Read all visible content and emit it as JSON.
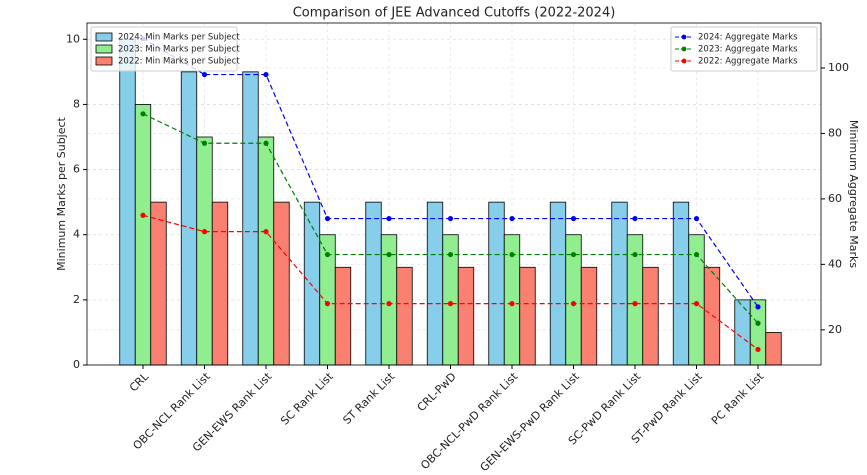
{
  "chart_data": {
    "type": "bar",
    "title": "Comparison of JEE Advanced Cutoffs (2022-2024)",
    "y_label": "Minimum Marks per Subject",
    "y2_label": "Minimum Aggregate Marks",
    "categories": [
      "CRL",
      "OBC-NCL Rank List",
      "GEN-EWS Rank List",
      "SC Rank List",
      "ST Rank List",
      "CRL-PwD",
      "OBC-NCL-PwD Rank List",
      "GEN-EWS-PwD Rank List",
      "SC-PwD Rank List",
      "ST-PwD Rank List",
      "PC Rank List"
    ],
    "series": [
      {
        "name": "2024: Min Marks per Subject",
        "type": "bar",
        "color": "#87ceeb",
        "values": [
          10,
          9,
          9,
          5,
          5,
          5,
          5,
          5,
          5,
          5,
          2
        ]
      },
      {
        "name": "2023: Min Marks per Subject",
        "type": "bar",
        "color": "#90ee90",
        "values": [
          8,
          7,
          7,
          4,
          4,
          4,
          4,
          4,
          4,
          4,
          2
        ]
      },
      {
        "name": "2022: Min Marks per Subject",
        "type": "bar",
        "color": "#fa8072",
        "values": [
          5,
          5,
          5,
          3,
          3,
          3,
          3,
          3,
          3,
          3,
          1
        ]
      },
      {
        "name": "2024: Aggregate Marks",
        "type": "line",
        "axis": "y2",
        "color": "#0000ff",
        "values": [
          109,
          98,
          98,
          54,
          54,
          54,
          54,
          54,
          54,
          54,
          27
        ]
      },
      {
        "name": "2023: Aggregate Marks",
        "type": "line",
        "axis": "y2",
        "color": "#008000",
        "values": [
          86,
          77,
          77,
          43,
          43,
          43,
          43,
          43,
          43,
          43,
          22
        ]
      },
      {
        "name": "2022: Aggregate Marks",
        "type": "line",
        "axis": "y2",
        "color": "#ff0000",
        "values": [
          55,
          50,
          50,
          28,
          28,
          28,
          28,
          28,
          28,
          28,
          14
        ]
      }
    ],
    "ylim": [
      0,
      10.5
    ],
    "yticks": [
      0,
      2,
      4,
      6,
      8,
      10
    ],
    "y2lim": [
      9.25,
      113.75
    ],
    "y2ticks": [
      20,
      40,
      60,
      80,
      100
    ],
    "grid": true,
    "legend_loc": "upper left",
    "legend2_loc": "upper right"
  }
}
